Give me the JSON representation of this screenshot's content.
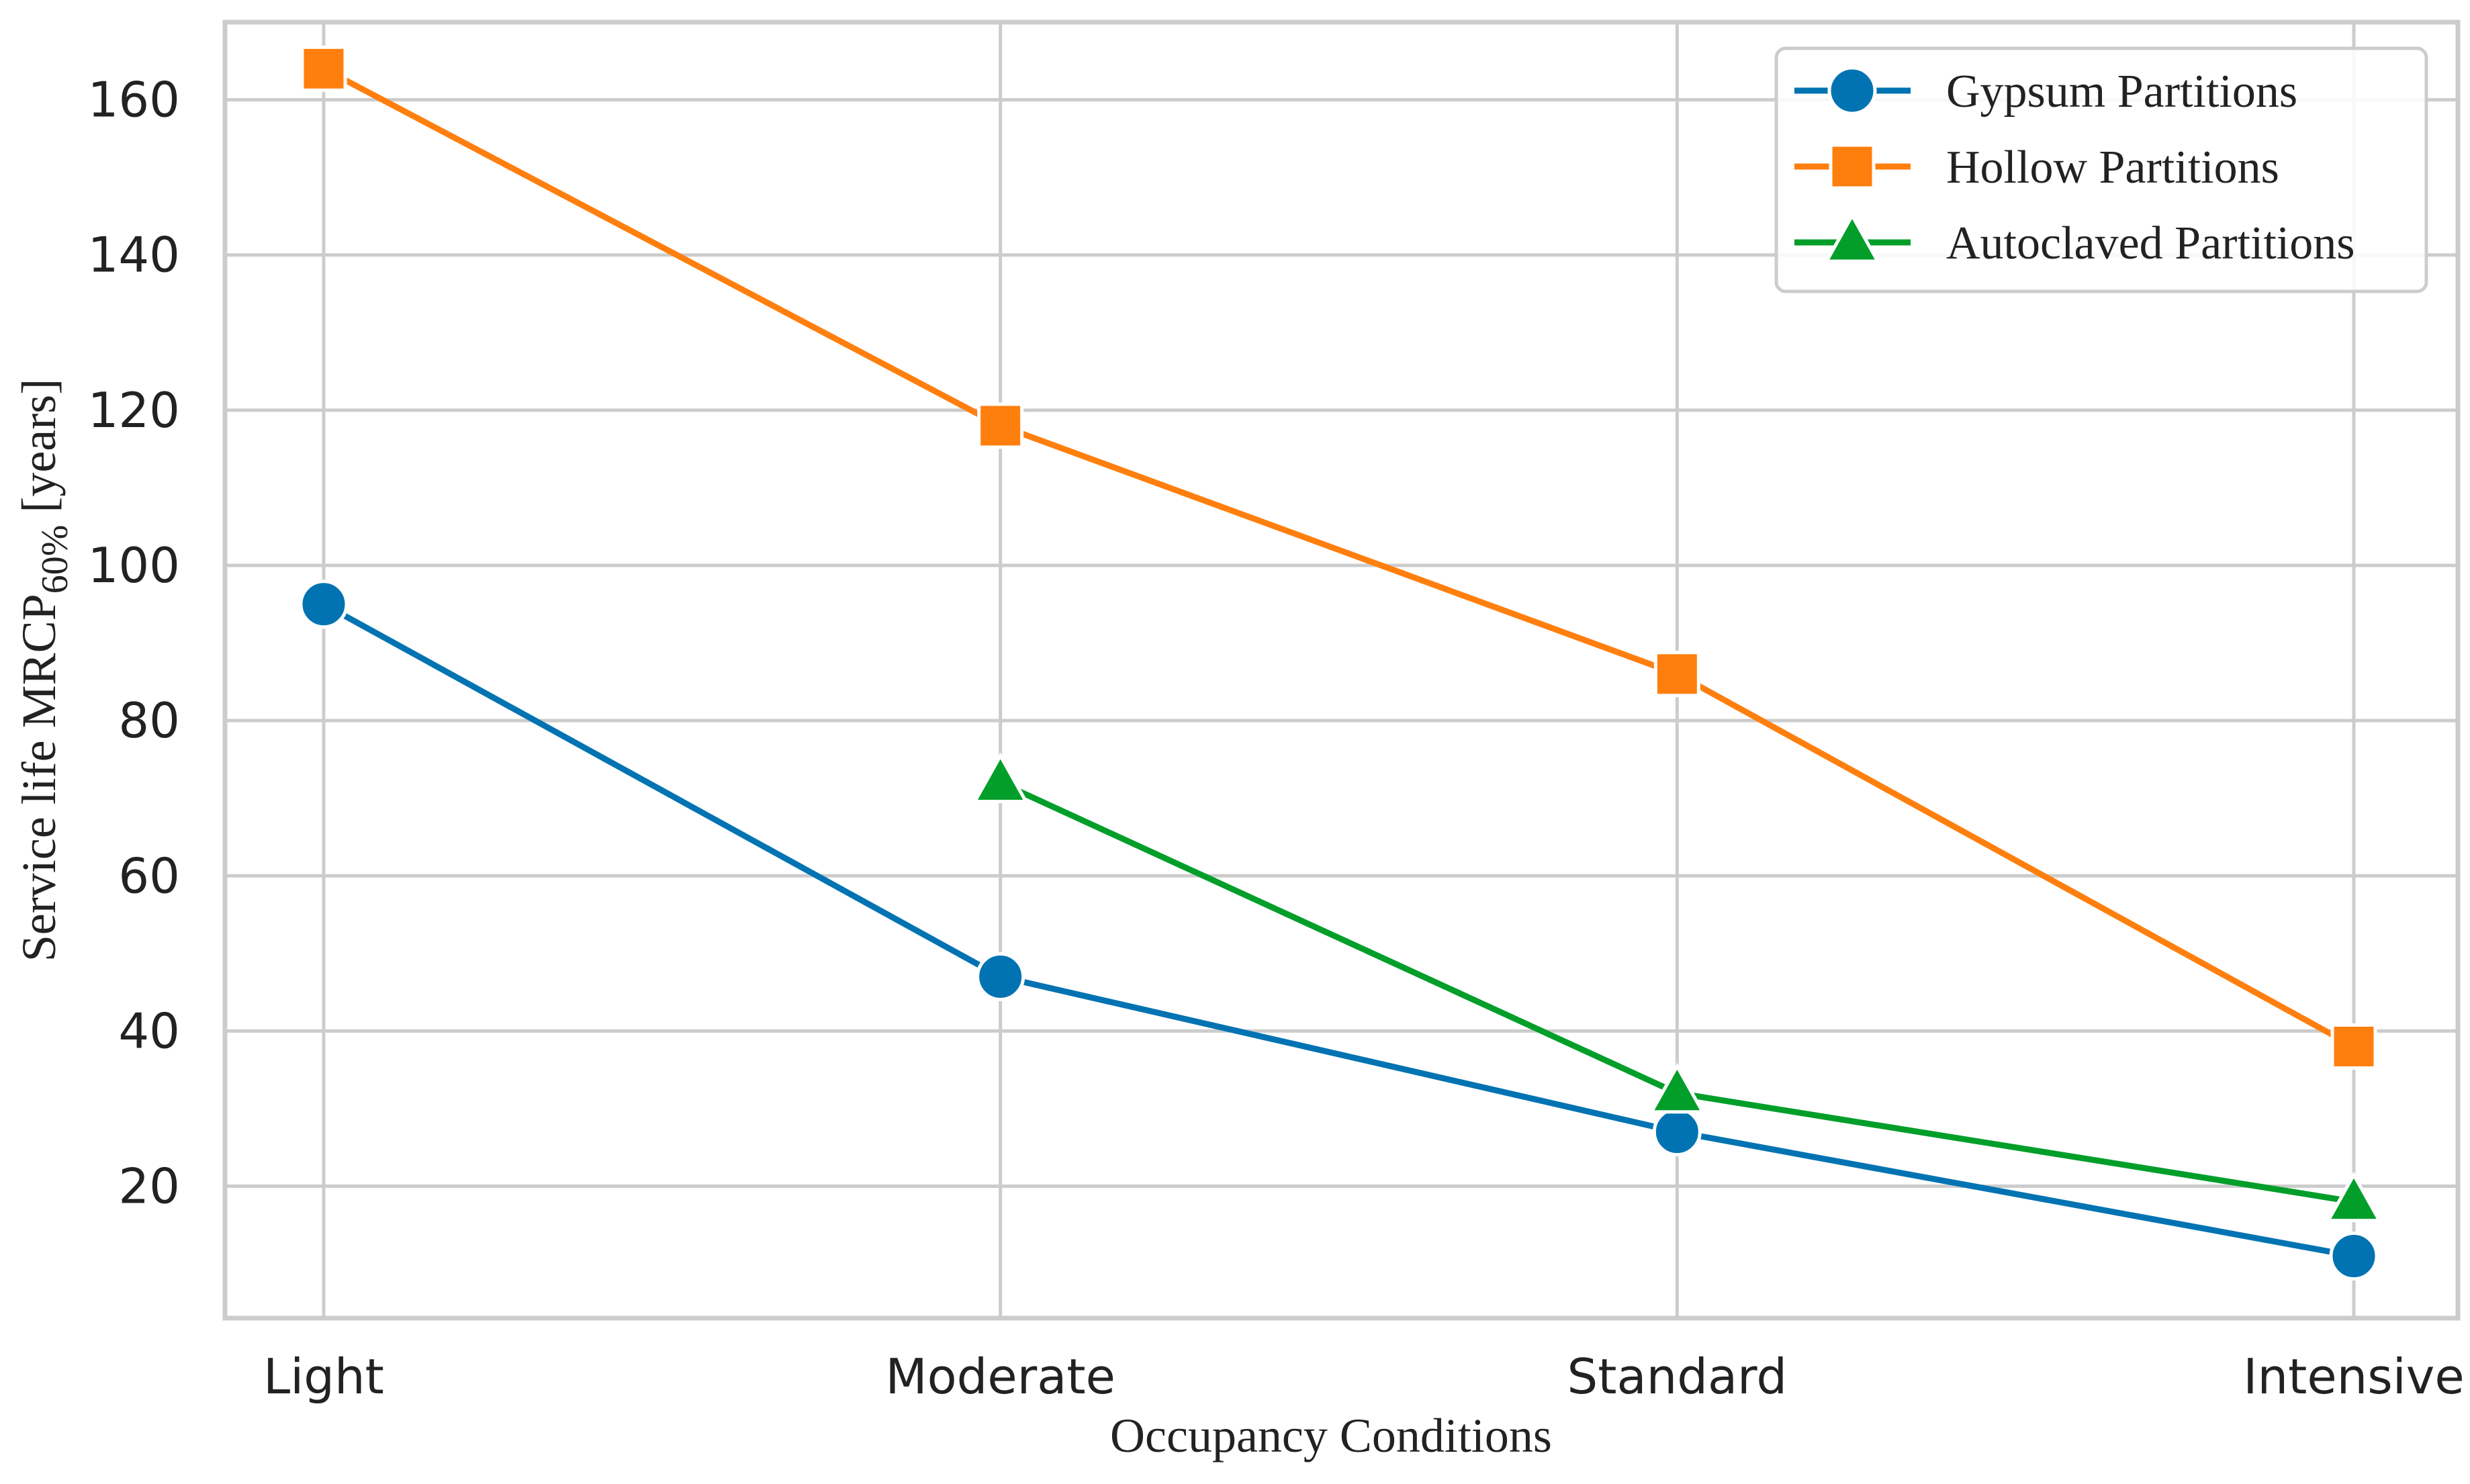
{
  "chart_data": {
    "type": "line",
    "title": "",
    "xlabel": "Occupancy Conditions",
    "ylabel": {
      "prefix": "Service life MRCP",
      "subscript": "60%",
      "suffix": " [years]"
    },
    "categories": [
      "Light",
      "Moderate",
      "Standard",
      "Intensive"
    ],
    "ylim": [
      3,
      170
    ],
    "yticks": [
      20,
      40,
      60,
      80,
      100,
      120,
      140,
      160
    ],
    "grid": true,
    "legend_position": "top-right",
    "series": [
      {
        "name": "Gypsum Partitions",
        "color": "#0173b2",
        "marker": "circle",
        "values": [
          95,
          47,
          27,
          11
        ]
      },
      {
        "name": "Hollow Partitions",
        "color": "#ff7f0e",
        "marker": "square",
        "values": [
          164,
          118,
          86,
          38
        ]
      },
      {
        "name": "Autoclaved Partitions",
        "color": "#029e2a",
        "marker": "triangle",
        "values": [
          null,
          72,
          32,
          18
        ]
      }
    ]
  }
}
